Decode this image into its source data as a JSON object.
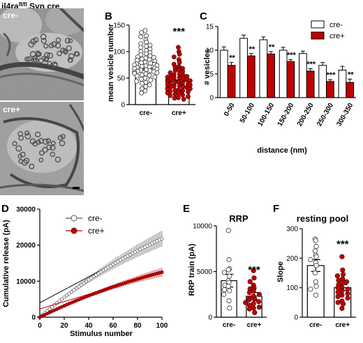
{
  "figure": {
    "title": "il4ra",
    "title_sup": "fl/fl",
    "title_rest": ".Syn cre"
  },
  "colors": {
    "cre_minus": "#ffffff",
    "cre_plus": "#c00000",
    "axis": "#000000"
  },
  "panel_A": {
    "label": "A",
    "images": [
      {
        "label": "cre-"
      },
      {
        "label": "cre+"
      }
    ]
  },
  "chart_data": [
    {
      "panel": "B",
      "type": "bar",
      "categories": [
        "cre-",
        "cre+"
      ],
      "values": [
        68,
        44
      ],
      "errors": [
        3,
        2.5
      ],
      "ylabel": "mean vesicle number",
      "ylim": [
        0,
        150
      ],
      "yticks": [
        0,
        50,
        100,
        150
      ],
      "significance": "***",
      "points": [
        [
          140,
          136,
          130,
          128,
          122,
          118,
          115,
          112,
          110,
          108,
          105,
          102,
          100,
          98,
          96,
          94,
          92,
          90,
          89,
          88,
          86,
          85,
          84,
          82,
          80,
          79,
          78,
          77,
          76,
          75,
          74,
          73,
          72,
          71,
          70,
          69,
          68,
          67,
          66,
          65,
          64,
          63,
          62,
          61,
          60,
          59,
          58,
          56,
          55,
          54,
          52,
          50,
          48,
          46,
          44,
          42,
          40,
          37,
          34,
          30,
          26,
          22
        ],
        [
          108,
          100,
          95,
          90,
          85,
          80,
          76,
          72,
          70,
          68,
          66,
          64,
          62,
          60,
          58,
          56,
          55,
          54,
          53,
          52,
          51,
          50,
          49,
          48,
          47,
          46,
          45,
          44,
          43,
          42,
          41,
          40,
          39,
          38,
          37,
          36,
          35,
          34,
          33,
          32,
          31,
          30,
          29,
          28,
          27,
          26,
          25,
          24,
          22,
          21,
          20,
          18,
          17,
          15,
          13,
          12,
          10
        ]
      ]
    },
    {
      "panel": "C",
      "type": "bar",
      "categories": [
        "0-50",
        "50-100",
        "100-150",
        "150-200",
        "200-250",
        "250-300",
        "300-350"
      ],
      "series": [
        {
          "name": "cre-",
          "values": [
            10,
            12.5,
            12.2,
            10,
            9.3,
            6.8,
            5.8
          ],
          "errors": [
            0.7,
            0.7,
            0.6,
            0.6,
            0.5,
            0.6,
            0.8
          ]
        },
        {
          "name": "cre+",
          "values": [
            6.8,
            8.8,
            9.2,
            7.6,
            5.6,
            3.4,
            3.2
          ],
          "errors": [
            0.6,
            0.5,
            0.5,
            0.4,
            0.5,
            0.4,
            0.7
          ]
        }
      ],
      "significance": [
        "**",
        "**",
        "**",
        "***",
        "***",
        "***",
        "**"
      ],
      "xlabel": "distance (nm)",
      "ylabel": "# vesicles",
      "ylim": [
        0,
        15
      ],
      "yticks": [
        0,
        5,
        10,
        15
      ],
      "legend": "top-right"
    },
    {
      "panel": "D",
      "type": "line",
      "xlabel": "Stimulus number",
      "ylabel": "Cumulative release (pA)",
      "xlim": [
        0,
        100
      ],
      "ylim": [
        0,
        30000
      ],
      "xticks": [
        0,
        20,
        40,
        60,
        80,
        100
      ],
      "yticks": [
        0,
        10000,
        20000,
        30000
      ],
      "legend": "top-left",
      "series": [
        {
          "name": "cre-",
          "end_value": 21800,
          "end_error": 2200,
          "fit": [
            4000,
            22000
          ]
        },
        {
          "name": "cre+",
          "end_value": 12500,
          "end_error": 1200,
          "fit": [
            2300,
            12500
          ]
        }
      ]
    },
    {
      "panel": "E",
      "type": "bar",
      "title": "RRP",
      "categories": [
        "cre-",
        "cre+"
      ],
      "values": [
        4000,
        2300
      ],
      "errors": [
        700,
        400
      ],
      "ylabel": "RRP train (pA)",
      "ylim": [
        0,
        10000
      ],
      "yticks": [
        0,
        5000,
        10000
      ],
      "significance": "***",
      "points": [
        [
          9500,
          6300,
          5300,
          5200,
          4900,
          4500,
          4000,
          3800,
          3500,
          3400,
          3000,
          2900,
          2500,
          1800,
          1000
        ],
        [
          5100,
          4300,
          3900,
          3500,
          3200,
          3100,
          2900,
          2700,
          2500,
          2300,
          2100,
          2000,
          1900,
          1700,
          1600,
          1500,
          1300,
          1100,
          1000,
          900,
          500
        ]
      ]
    },
    {
      "panel": "F",
      "type": "bar",
      "title": "resting pool",
      "categories": [
        "cre-",
        "cre+"
      ],
      "values": [
        175,
        100
      ],
      "errors": [
        20,
        10
      ],
      "ylabel": "Slope",
      "ylim": [
        0,
        300
      ],
      "yticks": [
        0,
        100,
        200,
        300
      ],
      "significance": "***",
      "points": [
        [
          265,
          260,
          240,
          225,
          210,
          205,
          195,
          185,
          175,
          150,
          120,
          105,
          95,
          75
        ],
        [
          205,
          160,
          145,
          140,
          130,
          125,
          120,
          115,
          110,
          100,
          100,
          95,
          90,
          85,
          80,
          75,
          70,
          65,
          55,
          50,
          45,
          30
        ]
      ]
    }
  ]
}
